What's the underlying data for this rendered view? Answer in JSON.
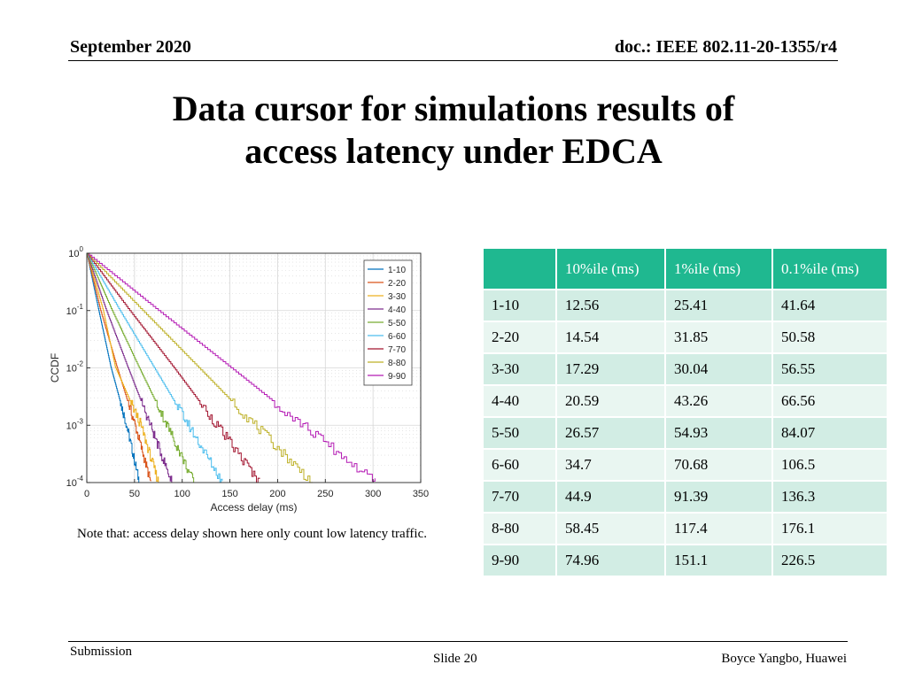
{
  "header": {
    "date": "September 2020",
    "doc": "doc.: IEEE 802.11-20-1355/r4"
  },
  "title": {
    "line1": "Data cursor for simulations results of",
    "line2": "access latency under EDCA"
  },
  "chart_data": {
    "type": "line",
    "xlabel": "Access delay (ms)",
    "ylabel": "CCDF",
    "xlim": [
      0,
      350
    ],
    "ylim": [
      0.0001,
      1
    ],
    "yscale": "log",
    "xticks": [
      "0",
      "50",
      "100",
      "150",
      "200",
      "250",
      "300",
      "350"
    ],
    "yticks": [
      {
        "base": "10",
        "exp": "0"
      },
      {
        "base": "10",
        "exp": "-1"
      },
      {
        "base": "10",
        "exp": "-2"
      },
      {
        "base": "10",
        "exp": "-3"
      },
      {
        "base": "10",
        "exp": "-4"
      }
    ],
    "grid": true,
    "legend_position": "top-right",
    "series": [
      {
        "name": "1-10",
        "color": "#0072bd",
        "x": [
          0,
          12.56,
          25.41,
          41.64,
          55
        ],
        "y": [
          1,
          0.1,
          0.01,
          0.001,
          0.0001
        ]
      },
      {
        "name": "2-20",
        "color": "#d95319",
        "x": [
          0,
          14.54,
          31.85,
          50.58,
          67
        ],
        "y": [
          1,
          0.1,
          0.01,
          0.001,
          0.0001
        ]
      },
      {
        "name": "3-30",
        "color": "#edb120",
        "x": [
          0,
          17.29,
          30.04,
          56.55,
          75
        ],
        "y": [
          1,
          0.1,
          0.01,
          0.001,
          0.0001
        ]
      },
      {
        "name": "4-40",
        "color": "#7e2f8e",
        "x": [
          0,
          20.59,
          43.26,
          66.56,
          89
        ],
        "y": [
          1,
          0.1,
          0.01,
          0.001,
          0.0001
        ]
      },
      {
        "name": "5-50",
        "color": "#77ac30",
        "x": [
          0,
          26.57,
          54.93,
          84.07,
          112
        ],
        "y": [
          1,
          0.1,
          0.01,
          0.001,
          0.0001
        ]
      },
      {
        "name": "6-60",
        "color": "#4dbeee",
        "x": [
          0,
          34.7,
          70.68,
          106.5,
          142
        ],
        "y": [
          1,
          0.1,
          0.01,
          0.001,
          0.0001
        ]
      },
      {
        "name": "7-70",
        "color": "#a2142f",
        "x": [
          0,
          44.9,
          91.39,
          136.3,
          181
        ],
        "y": [
          1,
          0.1,
          0.01,
          0.001,
          0.0001
        ]
      },
      {
        "name": "8-80",
        "color": "#bdb026",
        "x": [
          0,
          58.45,
          117.4,
          176.1,
          236
        ],
        "y": [
          1,
          0.1,
          0.01,
          0.001,
          0.0001
        ]
      },
      {
        "name": "9-90",
        "color": "#b41ab4",
        "x": [
          0,
          74.96,
          151.1,
          226.5,
          302
        ],
        "y": [
          1,
          0.1,
          0.01,
          0.001,
          0.0001
        ]
      }
    ]
  },
  "note": "Note that: access delay shown here only count low latency traffic.",
  "table": {
    "headers": [
      "",
      "10%ile (ms)",
      "1%ile (ms)",
      "0.1%ile (ms)"
    ],
    "rows": [
      [
        "1-10",
        "12.56",
        "25.41",
        "41.64"
      ],
      [
        "2-20",
        "14.54",
        "31.85",
        "50.58"
      ],
      [
        "3-30",
        "17.29",
        "30.04",
        "56.55"
      ],
      [
        "4-40",
        "20.59",
        "43.26",
        "66.56"
      ],
      [
        "5-50",
        "26.57",
        "54.93",
        "84.07"
      ],
      [
        "6-60",
        "34.7",
        "70.68",
        "106.5"
      ],
      [
        "7-70",
        "44.9",
        "91.39",
        "136.3"
      ],
      [
        "8-80",
        "58.45",
        "117.4",
        "176.1"
      ],
      [
        "9-90",
        "74.96",
        "151.1",
        "226.5"
      ]
    ]
  },
  "footer": {
    "left": "Submission",
    "center": "Slide 20",
    "right": "Boyce Yangbo, Huawei"
  }
}
